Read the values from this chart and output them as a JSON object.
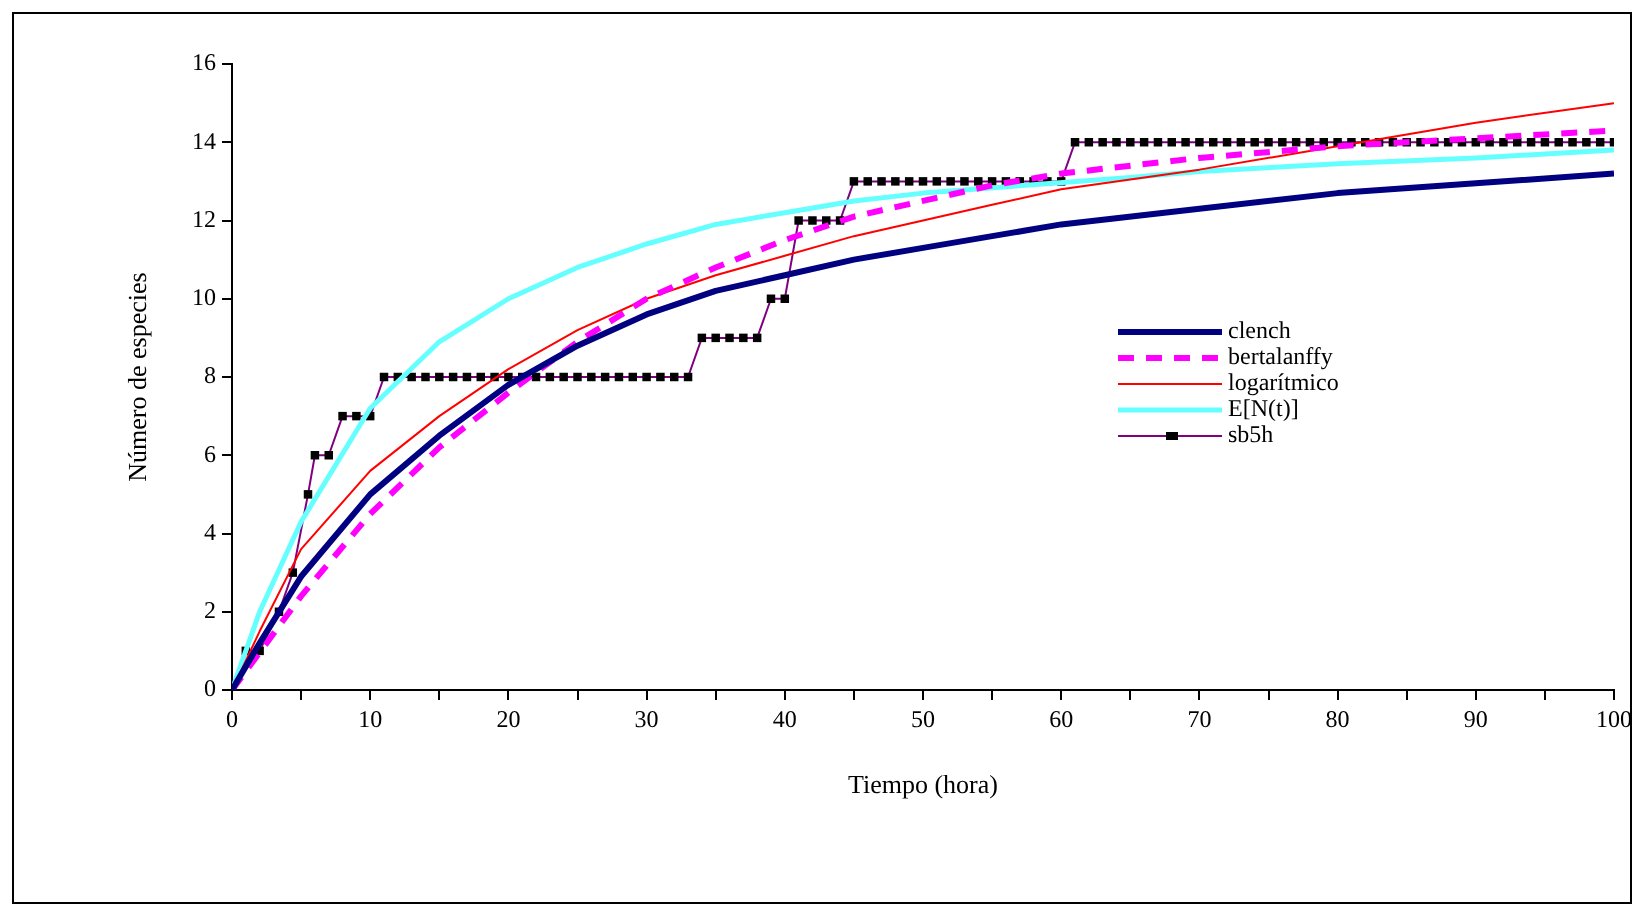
{
  "chart_data": {
    "type": "line",
    "xlabel": "Tiempo (hora)",
    "ylabel": "Número de especies",
    "xlim": [
      0,
      100
    ],
    "xticks": [
      0,
      {
        "value": 5,
        "label": null
      },
      10,
      {
        "value": 15,
        "label": null
      },
      20,
      {
        "value": 25,
        "label": null
      },
      30,
      {
        "value": 35,
        "label": null
      },
      40,
      {
        "value": 45,
        "label": null
      },
      50,
      {
        "value": 55,
        "label": null
      },
      60,
      {
        "value": 65,
        "label": null
      },
      70,
      {
        "value": 75,
        "label": null
      },
      80,
      {
        "value": 85,
        "label": null
      },
      90,
      {
        "value": 95,
        "label": null
      },
      100
    ],
    "ylim": [
      0,
      16
    ],
    "yticks": [
      0,
      2,
      4,
      6,
      8,
      10,
      12,
      14,
      16
    ],
    "grid": false,
    "legend": "right",
    "series": [
      {
        "name": "clench",
        "color": "#000080",
        "marker": "none",
        "line_style": "solid",
        "x": [
          0,
          2,
          5,
          10,
          15,
          20,
          25,
          30,
          35,
          40,
          45,
          50,
          55,
          60,
          70,
          80,
          90,
          100
        ],
        "values": [
          0,
          1.2,
          2.9,
          5.0,
          6.5,
          7.8,
          8.8,
          9.6,
          10.2,
          10.6,
          11.0,
          11.3,
          11.6,
          11.9,
          12.3,
          12.7,
          12.95,
          13.2
        ]
      },
      {
        "name": "bertalanffy",
        "color": "#ff00ff",
        "marker": "none",
        "line_style": "dashed",
        "x": [
          0,
          5,
          10,
          15,
          20,
          25,
          30,
          35,
          40,
          45,
          50,
          55,
          60,
          70,
          80,
          90,
          100
        ],
        "values": [
          0,
          2.4,
          4.5,
          6.2,
          7.6,
          8.9,
          10.0,
          10.8,
          11.5,
          12.1,
          12.5,
          12.9,
          13.2,
          13.6,
          13.9,
          14.1,
          14.3
        ]
      },
      {
        "name": "logarítmico",
        "color": "#ff0000",
        "marker": "none",
        "line_style": "solid",
        "x": [
          0,
          2,
          5,
          10,
          15,
          20,
          25,
          30,
          35,
          40,
          45,
          50,
          55,
          60,
          70,
          80,
          90,
          100
        ],
        "values": [
          0,
          1.5,
          3.6,
          5.6,
          7.0,
          8.2,
          9.2,
          10.0,
          10.6,
          11.1,
          11.6,
          12.0,
          12.4,
          12.8,
          13.3,
          13.9,
          14.5,
          15.0
        ]
      },
      {
        "name": "E[N(t)]",
        "color": "#66ffff",
        "marker": "none",
        "line_style": "solid",
        "x": [
          0,
          2,
          5,
          10,
          15,
          20,
          25,
          30,
          35,
          40,
          45,
          50,
          65,
          70,
          80,
          90,
          100
        ],
        "values": [
          0,
          2.0,
          4.3,
          7.2,
          8.9,
          10.0,
          10.8,
          11.4,
          11.9,
          12.2,
          12.5,
          12.7,
          13.1,
          13.25,
          13.45,
          13.6,
          13.8
        ]
      },
      {
        "name": "sb5h",
        "color": "#800080",
        "marker": "square",
        "line_style": "solid",
        "x": [
          0,
          1,
          2,
          3.4,
          4.4,
          5.5,
          6,
          7,
          8,
          9,
          10,
          11,
          12,
          13,
          14,
          15,
          16,
          17,
          18,
          19,
          20,
          21,
          22,
          23,
          24,
          25,
          26,
          27,
          28,
          29,
          30,
          31,
          32,
          33,
          34,
          35,
          36,
          37,
          38,
          39,
          40,
          41,
          42,
          43,
          44,
          45,
          46,
          47,
          48,
          49,
          50,
          51,
          52,
          53,
          54,
          55,
          56,
          57,
          58,
          59,
          60,
          61,
          62,
          63,
          64,
          65,
          66,
          67,
          68,
          69,
          70,
          71,
          72,
          73,
          74,
          75,
          76,
          77,
          78,
          79,
          80,
          81,
          82,
          83,
          84,
          85,
          86,
          87,
          88,
          89,
          90,
          91,
          92,
          93,
          94,
          95,
          96,
          97,
          98,
          99,
          100
        ],
        "values": [
          0,
          1,
          1,
          2,
          3,
          5,
          6,
          6,
          7,
          7,
          7,
          8,
          8,
          8,
          8,
          8,
          8,
          8,
          8,
          8,
          8,
          8,
          8,
          8,
          8,
          8,
          8,
          8,
          8,
          8,
          8,
          8,
          8,
          8,
          9,
          9,
          9,
          9,
          9,
          10,
          10,
          12,
          12,
          12,
          12,
          13,
          13,
          13,
          13,
          13,
          13,
          13,
          13,
          13,
          13,
          13,
          13,
          13,
          13,
          13,
          13,
          14,
          14,
          14,
          14,
          14,
          14,
          14,
          14,
          14,
          14,
          14,
          14,
          14,
          14,
          14,
          14,
          14,
          14,
          14,
          14,
          14,
          14,
          14,
          14,
          14,
          14,
          14,
          14,
          14,
          14,
          14,
          14,
          14,
          14,
          14,
          14,
          14,
          14,
          14,
          14
        ]
      }
    ]
  }
}
